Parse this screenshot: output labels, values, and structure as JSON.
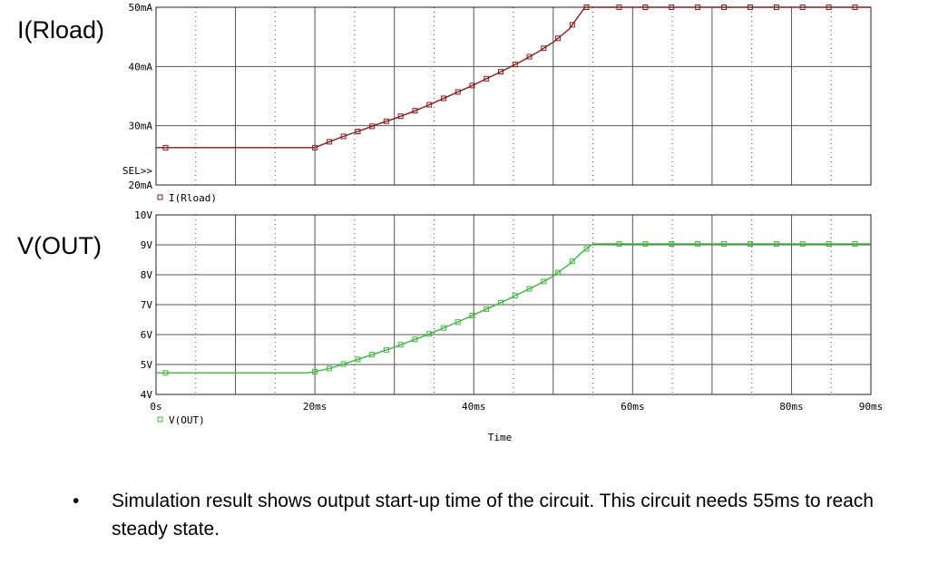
{
  "side_labels": {
    "current": "I(Rload)",
    "voltage": "V(OUT)"
  },
  "bullet": {
    "marker": "•",
    "text": "Simulation result shows output start-up time of the circuit. This circuit needs 55ms to reach steady state."
  },
  "chart_data": [
    {
      "type": "line",
      "series": [
        {
          "name": "I(Rload)",
          "color": "#8b1a1a",
          "x": [
            0,
            20,
            22,
            24,
            26,
            28,
            30,
            32,
            34,
            36,
            38,
            40,
            42,
            44,
            46,
            48,
            50,
            52,
            54,
            90
          ],
          "y": [
            26.3,
            26.3,
            27.4,
            28.4,
            29.3,
            30.3,
            31.2,
            32.2,
            33.3,
            34.5,
            35.7,
            36.9,
            38.2,
            39.5,
            40.9,
            42.4,
            44.1,
            46.3,
            50,
            50
          ]
        }
      ],
      "xlim": [
        0,
        90
      ],
      "ylim": [
        20,
        50
      ],
      "yticks": [
        "20mA",
        "30mA",
        "40mA",
        "50mA"
      ],
      "annotation": "SEL>>",
      "legend": "bottom-left",
      "grid": true
    },
    {
      "type": "line",
      "series": [
        {
          "name": "V(OUT)",
          "color": "#3cb83c",
          "x": [
            0,
            19,
            20,
            22,
            24,
            26,
            28,
            30,
            32,
            34,
            36,
            38,
            40,
            42,
            44,
            46,
            48,
            50,
            52,
            53.5,
            55,
            90
          ],
          "y": [
            4.72,
            4.72,
            4.76,
            4.88,
            5.05,
            5.22,
            5.4,
            5.58,
            5.78,
            5.98,
            6.2,
            6.42,
            6.66,
            6.9,
            7.14,
            7.4,
            7.66,
            7.95,
            8.35,
            8.72,
            9.03,
            9.03
          ]
        }
      ],
      "xlim": [
        0,
        90
      ],
      "ylim": [
        4,
        10
      ],
      "xticks": [
        "0s",
        "20ms",
        "40ms",
        "60ms",
        "80ms",
        "90ms"
      ],
      "yticks": [
        "4V",
        "5V",
        "6V",
        "7V",
        "8V",
        "9V",
        "10V"
      ],
      "xlabel": "Time",
      "legend": "bottom-left",
      "grid": true
    }
  ]
}
